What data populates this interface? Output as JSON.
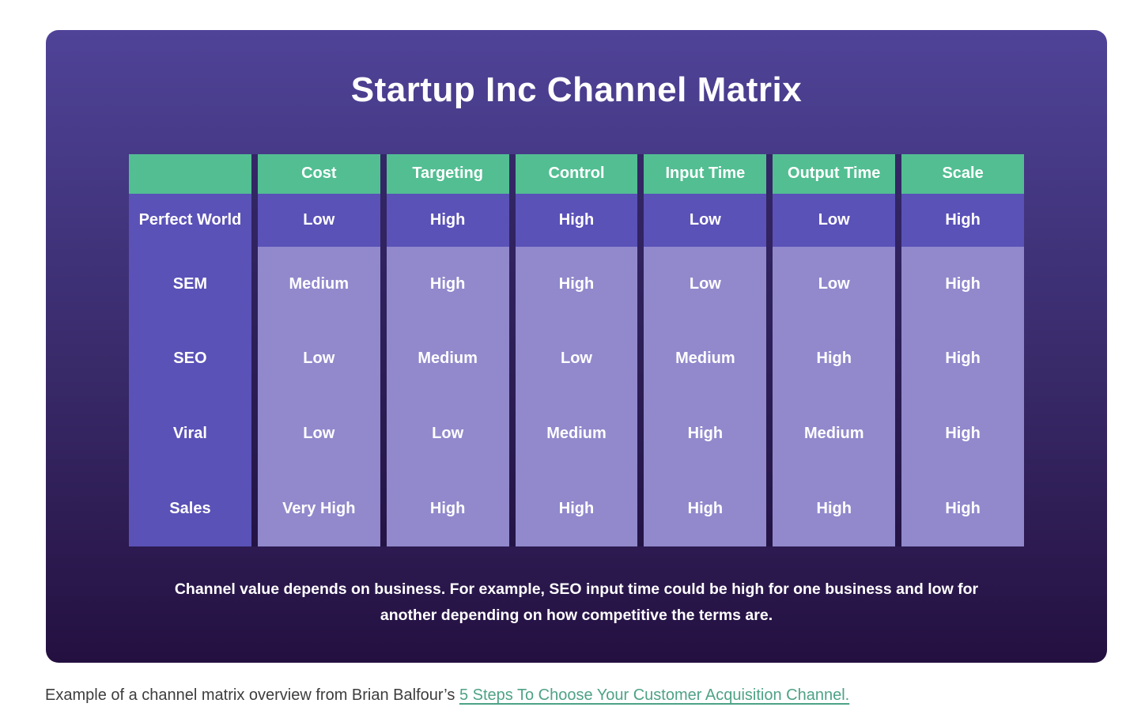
{
  "card": {
    "footnote": "Channel value depends on business. For example, SEO input time could be high for one business and low for another depending on how competitive the terms are."
  },
  "chart_data": {
    "type": "table",
    "title": "Startup Inc Channel Matrix",
    "columns": [
      "",
      "Cost",
      "Targeting",
      "Control",
      "Input Time",
      "Output Time",
      "Scale"
    ],
    "rows": [
      {
        "label": "Perfect World",
        "values": [
          "Low",
          "High",
          "High",
          "Low",
          "Low",
          "High"
        ]
      },
      {
        "label": "SEM",
        "values": [
          "Medium",
          "High",
          "High",
          "Low",
          "Low",
          "High"
        ]
      },
      {
        "label": "SEO",
        "values": [
          "Low",
          "Medium",
          "Low",
          "Medium",
          "High",
          "High"
        ]
      },
      {
        "label": "Viral",
        "values": [
          "Low",
          "Low",
          "Medium",
          "High",
          "Medium",
          "High"
        ]
      },
      {
        "label": "Sales",
        "values": [
          "Very High",
          "High",
          "High",
          "High",
          "High",
          "High"
        ]
      }
    ],
    "layout": {
      "legend": "none",
      "header_row_position": "top",
      "label_column_position": "left"
    }
  },
  "caption": {
    "text": "Example of a channel matrix overview from Brian Balfour’s ",
    "link_label": "5 Steps To Choose Your Customer Acquisition Channel."
  },
  "colors": {
    "header_green": "#52BE92",
    "perfect_world_purple": "#5A52B7",
    "channel_cell_purple": "#9189CC",
    "card_gradient_top": "#4F4398",
    "card_gradient_bottom": "#241040",
    "link_green": "#4EA287"
  }
}
